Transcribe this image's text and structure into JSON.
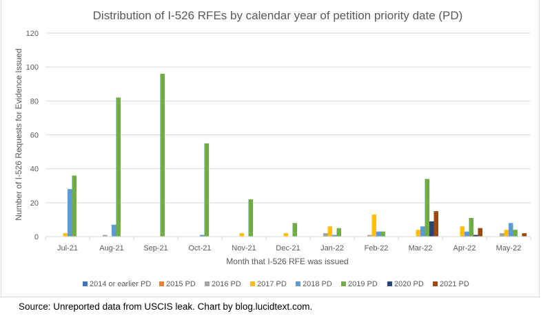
{
  "chart_data": {
    "type": "bar",
    "title": "Distribution of I-526 RFEs by calendar year of petition priority date (PD)",
    "xlabel": "Month that I-526 RFE was issued",
    "ylabel": "Number of I-526 Requests for Evidence Issued",
    "ylim": [
      0,
      120
    ],
    "yticks": [
      0,
      20,
      40,
      60,
      80,
      100,
      120
    ],
    "grid": true,
    "legend_position": "bottom",
    "categories": [
      "Jul-21",
      "Aug-21",
      "Sep-21",
      "Oct-21",
      "Nov-21",
      "Dec-21",
      "Jan-22",
      "Feb-22",
      "Mar-22",
      "Apr-22",
      "May-22"
    ],
    "series": [
      {
        "name": "2014 or earlier PD",
        "color": "#4472C4",
        "values": [
          0,
          0,
          0,
          0,
          0,
          0,
          0,
          0,
          0,
          0,
          0
        ]
      },
      {
        "name": "2015 PD",
        "color": "#ED7D31",
        "values": [
          0,
          0,
          0,
          0,
          0,
          0,
          0,
          0,
          0,
          0,
          0
        ]
      },
      {
        "name": "2016 PD",
        "color": "#A5A5A5",
        "values": [
          0,
          1,
          0,
          0,
          0,
          0,
          2,
          1,
          0,
          0,
          2
        ]
      },
      {
        "name": "2017 PD",
        "color": "#FFC000",
        "values": [
          2,
          0,
          0,
          0,
          2,
          2,
          6,
          13,
          4,
          6,
          4
        ]
      },
      {
        "name": "2018 PD",
        "color": "#5B9BD5",
        "values": [
          28,
          7,
          0,
          1,
          0,
          0,
          1,
          3,
          6,
          3,
          8
        ]
      },
      {
        "name": "2019 PD",
        "color": "#70AD47",
        "values": [
          36,
          82,
          96,
          55,
          22,
          8,
          5,
          3,
          34,
          11,
          4
        ]
      },
      {
        "name": "2020 PD",
        "color": "#264478",
        "values": [
          0,
          0,
          0,
          0,
          0,
          0,
          0,
          0,
          9,
          1,
          0
        ]
      },
      {
        "name": "2021 PD",
        "color": "#9E480E",
        "values": [
          0,
          0,
          0,
          0,
          0,
          0,
          0,
          0,
          15,
          5,
          2
        ]
      }
    ]
  },
  "source_note": "Source: Unreported data from USCIS leak. Chart by blog.lucidtext.com."
}
